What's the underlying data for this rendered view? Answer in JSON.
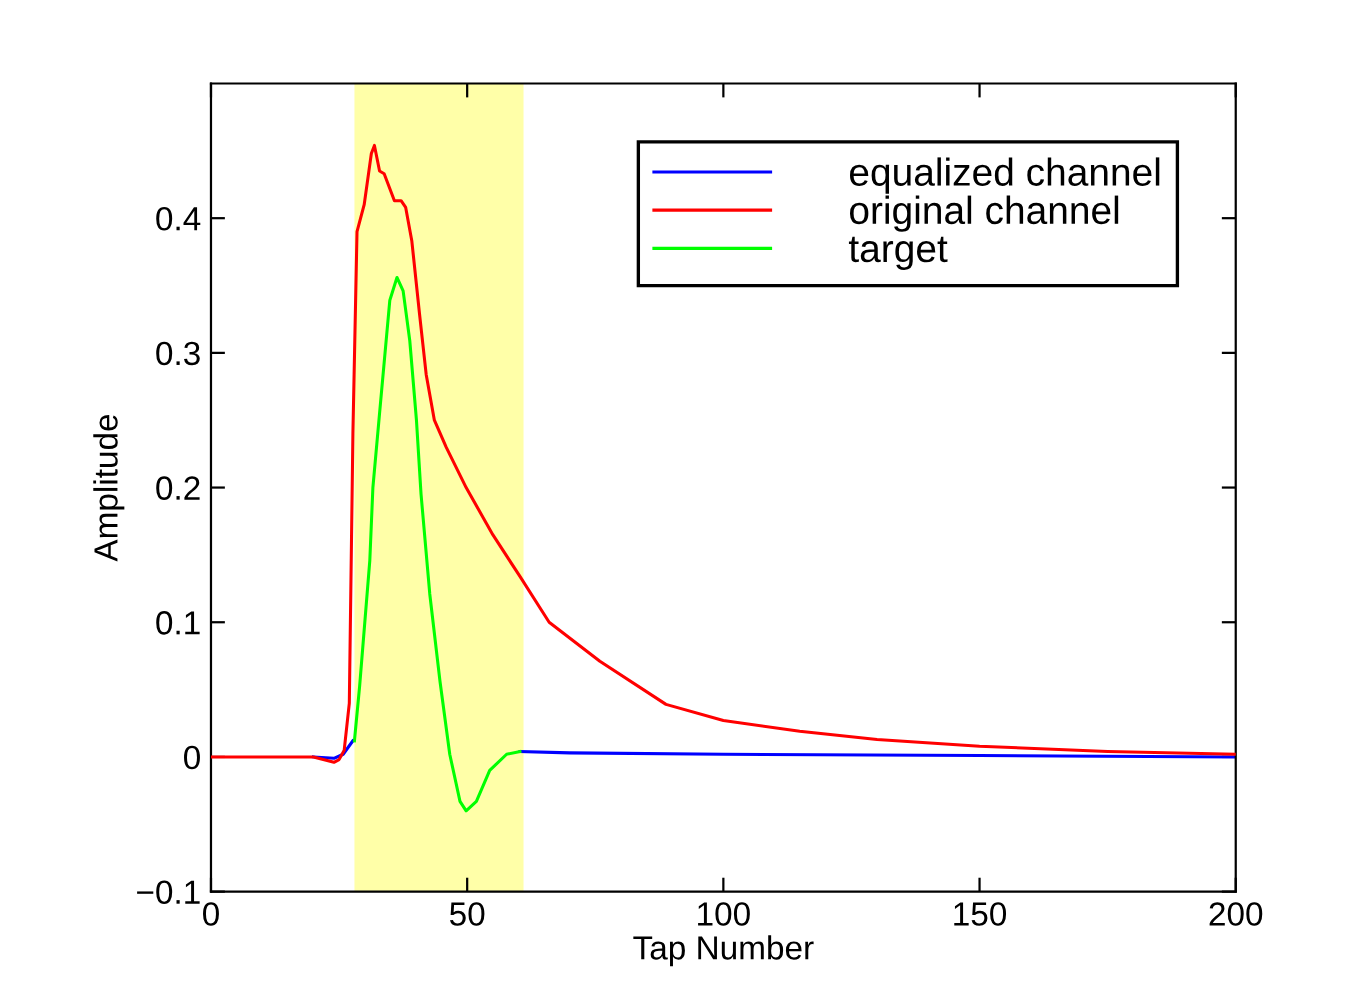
{
  "chart_data": {
    "type": "line",
    "xlabel": "Tap Number",
    "ylabel": "Amplitude",
    "xlim": [
      0,
      200
    ],
    "xticks": [
      0,
      50,
      100,
      150,
      200
    ],
    "ylim": [
      -0.1,
      0.5
    ],
    "yticks": [
      -0.1,
      0,
      0.1,
      0.2,
      0.3,
      0.4
    ],
    "legend": "top right",
    "grid": false,
    "bands": [
      {
        "axis": "x",
        "from": 28,
        "to": 61,
        "color": "#ffffa8"
      }
    ],
    "series": [
      {
        "name": "equalized channel",
        "color": "#0000ff",
        "x": [
          20,
          24,
          25.8,
          27.7,
          44,
          60.3,
          70,
          100,
          150,
          200
        ],
        "values": [
          0,
          -0.001,
          0.002,
          0.012,
          null,
          0.004,
          0.003,
          0.002,
          0.001,
          0
        ]
      },
      {
        "name": "original channel",
        "color": "#ff0000",
        "x": [
          0,
          10,
          20,
          24,
          25,
          26,
          27,
          27.7,
          28.5,
          29.9,
          31.3,
          31.9,
          32.9,
          33.8,
          35.8,
          37.1,
          38,
          39.2,
          40.7,
          42,
          43.6,
          45.9,
          49.8,
          55,
          60.3,
          66,
          75.9,
          88.8,
          100,
          114.9,
          130,
          150,
          175,
          200
        ],
        "values": [
          0,
          0,
          0,
          -0.004,
          -0.002,
          0.005,
          0.04,
          0.24,
          0.39,
          0.41,
          0.448,
          0.454,
          0.435,
          0.433,
          0.413,
          0.413,
          0.408,
          0.383,
          0.329,
          0.284,
          0.25,
          0.23,
          0.2,
          0.165,
          0.134,
          0.1,
          0.071,
          0.039,
          0.027,
          0.019,
          0.013,
          0.008,
          0.004,
          0.002
        ]
      },
      {
        "name": "target",
        "color": "#00ff00",
        "x": [
          28,
          29,
          31,
          31.6,
          32.9,
          34.9,
          36.3,
          37.5,
          38.8,
          40.1,
          41,
          42.7,
          44.7,
          46.6,
          48.6,
          49.8,
          51.8,
          54.4,
          57.7,
          60.3
        ],
        "values": [
          0.012,
          0.052,
          0.146,
          0.2,
          0.255,
          0.339,
          0.356,
          0.346,
          0.309,
          0.25,
          0.195,
          0.121,
          0.056,
          0.002,
          -0.033,
          -0.04,
          -0.033,
          -0.01,
          0.002,
          0.004
        ]
      }
    ]
  }
}
